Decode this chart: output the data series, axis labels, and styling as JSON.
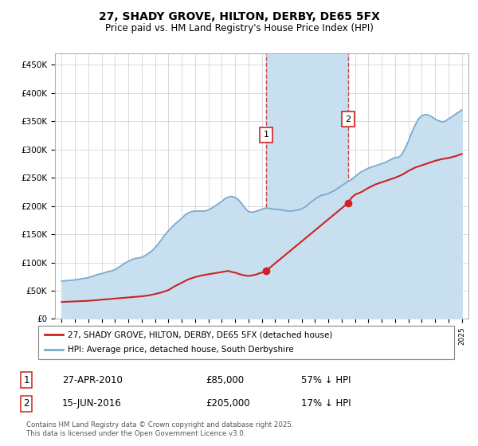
{
  "title": "27, SHADY GROVE, HILTON, DERBY, DE65 5FX",
  "subtitle": "Price paid vs. HM Land Registry's House Price Index (HPI)",
  "title_fontsize": 10,
  "subtitle_fontsize": 8.5,
  "ylabel_ticks": [
    "£0",
    "£50K",
    "£100K",
    "£150K",
    "£200K",
    "£250K",
    "£300K",
    "£350K",
    "£400K",
    "£450K"
  ],
  "ytick_values": [
    0,
    50000,
    100000,
    150000,
    200000,
    250000,
    300000,
    350000,
    400000,
    450000
  ],
  "ylim": [
    0,
    470000
  ],
  "xlim_start": 1994.5,
  "xlim_end": 2025.5,
  "grid_color": "#cccccc",
  "hpi_color": "#7aabcc",
  "hpi_fill_color": "#c8dff0",
  "price_color": "#cc2222",
  "vline_color": "#cc2222",
  "shade_color": "#c8dff0",
  "transaction1_x": 2010.32,
  "transaction1_y": 85000,
  "transaction2_x": 2016.46,
  "transaction2_y": 205000,
  "legend_line1": "27, SHADY GROVE, HILTON, DERBY, DE65 5FX (detached house)",
  "legend_line2": "HPI: Average price, detached house, South Derbyshire",
  "table_row1": [
    "1",
    "27-APR-2010",
    "£85,000",
    "57% ↓ HPI"
  ],
  "table_row2": [
    "2",
    "15-JUN-2016",
    "£205,000",
    "17% ↓ HPI"
  ],
  "footnote": "Contains HM Land Registry data © Crown copyright and database right 2025.\nThis data is licensed under the Open Government Licence v3.0.",
  "hpi_data_x": [
    1995.0,
    1995.25,
    1995.5,
    1995.75,
    1996.0,
    1996.25,
    1996.5,
    1996.75,
    1997.0,
    1997.25,
    1997.5,
    1997.75,
    1998.0,
    1998.25,
    1998.5,
    1998.75,
    1999.0,
    1999.25,
    1999.5,
    1999.75,
    2000.0,
    2000.25,
    2000.5,
    2000.75,
    2001.0,
    2001.25,
    2001.5,
    2001.75,
    2002.0,
    2002.25,
    2002.5,
    2002.75,
    2003.0,
    2003.25,
    2003.5,
    2003.75,
    2004.0,
    2004.25,
    2004.5,
    2004.75,
    2005.0,
    2005.25,
    2005.5,
    2005.75,
    2006.0,
    2006.25,
    2006.5,
    2006.75,
    2007.0,
    2007.25,
    2007.5,
    2007.75,
    2008.0,
    2008.25,
    2008.5,
    2008.75,
    2009.0,
    2009.25,
    2009.5,
    2009.75,
    2010.0,
    2010.25,
    2010.5,
    2010.75,
    2011.0,
    2011.25,
    2011.5,
    2011.75,
    2012.0,
    2012.25,
    2012.5,
    2012.75,
    2013.0,
    2013.25,
    2013.5,
    2013.75,
    2014.0,
    2014.25,
    2014.5,
    2014.75,
    2015.0,
    2015.25,
    2015.5,
    2015.75,
    2016.0,
    2016.25,
    2016.5,
    2016.75,
    2017.0,
    2017.25,
    2017.5,
    2017.75,
    2018.0,
    2018.25,
    2018.5,
    2018.75,
    2019.0,
    2019.25,
    2019.5,
    2019.75,
    2020.0,
    2020.25,
    2020.5,
    2020.75,
    2021.0,
    2021.25,
    2021.5,
    2021.75,
    2022.0,
    2022.25,
    2022.5,
    2022.75,
    2023.0,
    2023.25,
    2023.5,
    2023.75,
    2024.0,
    2024.25,
    2024.5,
    2024.75,
    2025.0
  ],
  "hpi_data_y": [
    67000,
    67500,
    68000,
    68500,
    69000,
    70000,
    71000,
    72000,
    73000,
    75000,
    77000,
    79000,
    80000,
    82000,
    84000,
    85000,
    87000,
    91000,
    95000,
    99000,
    102000,
    105000,
    107000,
    108000,
    109000,
    112000,
    116000,
    120000,
    126000,
    133000,
    141000,
    149000,
    156000,
    162000,
    168000,
    173000,
    178000,
    184000,
    188000,
    190000,
    191000,
    191000,
    191000,
    191000,
    193000,
    196000,
    200000,
    204000,
    208000,
    213000,
    216000,
    217000,
    215000,
    211000,
    204000,
    196000,
    190000,
    189000,
    190000,
    192000,
    194000,
    196000,
    196000,
    195000,
    194000,
    194000,
    193000,
    192000,
    191000,
    191000,
    192000,
    193000,
    195000,
    198000,
    203000,
    208000,
    212000,
    216000,
    219000,
    220000,
    222000,
    225000,
    228000,
    232000,
    236000,
    240000,
    244000,
    247000,
    252000,
    257000,
    261000,
    264000,
    267000,
    269000,
    271000,
    273000,
    275000,
    277000,
    280000,
    283000,
    286000,
    286000,
    291000,
    302000,
    315000,
    330000,
    343000,
    354000,
    360000,
    362000,
    361000,
    358000,
    354000,
    351000,
    349000,
    350000,
    354000,
    358000,
    362000,
    366000,
    370000
  ],
  "price_data_x": [
    1995.0,
    1995.5,
    1996.0,
    1996.5,
    1997.0,
    1997.5,
    1998.0,
    1998.5,
    1999.0,
    1999.5,
    2000.0,
    2000.5,
    2001.0,
    2001.5,
    2002.0,
    2002.5,
    2003.0,
    2003.5,
    2004.0,
    2004.5,
    2005.0,
    2005.5,
    2006.0,
    2006.5,
    2007.0,
    2007.25,
    2007.5,
    2007.75,
    2008.0,
    2008.25,
    2008.5,
    2008.75,
    2009.0,
    2009.25,
    2009.5,
    2009.75,
    2010.0,
    2010.32,
    2016.46,
    2016.75,
    2017.0,
    2017.5,
    2018.0,
    2018.5,
    2019.0,
    2019.5,
    2020.0,
    2020.5,
    2021.0,
    2021.5,
    2022.0,
    2022.5,
    2023.0,
    2023.5,
    2024.0,
    2024.5,
    2025.0
  ],
  "price_data_y": [
    30000,
    30500,
    31000,
    31500,
    32000,
    33000,
    34000,
    35000,
    36000,
    37000,
    38000,
    39000,
    40000,
    41500,
    44000,
    47000,
    51000,
    58000,
    64000,
    70000,
    74000,
    77000,
    79000,
    81000,
    83000,
    84000,
    85000,
    83000,
    82000,
    80000,
    78000,
    77000,
    76000,
    77000,
    78000,
    80000,
    82000,
    85000,
    205000,
    215000,
    220000,
    225000,
    232000,
    238000,
    242000,
    246000,
    250000,
    255000,
    262000,
    268000,
    272000,
    276000,
    280000,
    283000,
    285000,
    288000,
    292000
  ]
}
